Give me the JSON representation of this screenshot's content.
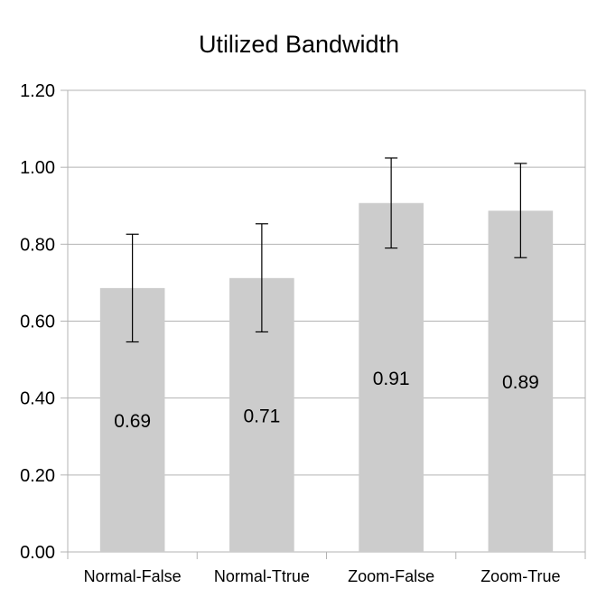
{
  "chart_data": {
    "type": "bar",
    "title": "Utilized Bandwidth",
    "xlabel": "",
    "ylabel": "",
    "categories": [
      "Normal-False",
      "Normal-Ttrue",
      "Zoom-False",
      "Zoom-True"
    ],
    "values": [
      0.686,
      0.712,
      0.907,
      0.887
    ],
    "data_labels": [
      "0.69",
      "0.71",
      "0.91",
      "0.89"
    ],
    "error_low": [
      0.546,
      0.572,
      0.79,
      0.765
    ],
    "error_high": [
      0.826,
      0.853,
      1.024,
      1.01
    ],
    "ylim": [
      0,
      1.2
    ],
    "yticks": [
      0,
      0.2,
      0.4,
      0.6,
      0.8,
      1.0,
      1.2
    ],
    "ytick_labels": [
      "0.00",
      "0.20",
      "0.40",
      "0.60",
      "0.80",
      "1.00",
      "1.20"
    ],
    "grid": true,
    "legend": "none",
    "colors": {
      "bar": "#cccccc",
      "grid": "#b3b3b3",
      "error_bar": "#000000",
      "text": "#000000"
    }
  }
}
